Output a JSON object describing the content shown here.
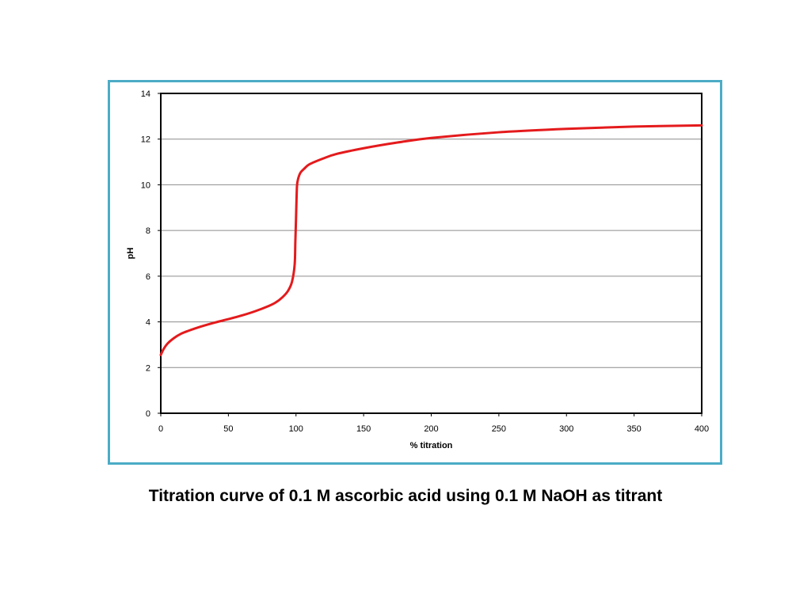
{
  "caption": "Titration curve of 0.1 M ascorbic acid using 0.1 M NaOH as titrant",
  "colors": {
    "frame": "#4bacc6",
    "curve": "#e41a1c",
    "grid": "#8c8c8c",
    "axis": "#000000"
  },
  "chart_data": {
    "type": "line",
    "title": "",
    "xlabel": "% titration",
    "ylabel": "pH",
    "xlim": [
      0,
      400
    ],
    "ylim": [
      0,
      14
    ],
    "x_ticks": [
      0,
      50,
      100,
      150,
      200,
      250,
      300,
      350,
      400
    ],
    "y_ticks": [
      0,
      2,
      4,
      6,
      8,
      10,
      12,
      14
    ],
    "grid": true,
    "legend": "none",
    "series": [
      {
        "x": [
          0,
          2,
          5,
          10,
          15,
          20,
          30,
          40,
          50,
          60,
          70,
          80,
          85,
          90,
          94,
          97,
          99,
          99.5,
          100,
          100.5,
          101,
          103,
          106,
          110,
          120,
          130,
          150,
          175,
          200,
          250,
          300,
          350,
          400
        ],
        "y": [
          2.55,
          2.8,
          3.05,
          3.3,
          3.48,
          3.6,
          3.8,
          3.97,
          4.12,
          4.28,
          4.47,
          4.7,
          4.85,
          5.08,
          5.35,
          5.75,
          6.5,
          7.5,
          8.5,
          9.6,
          10.1,
          10.5,
          10.7,
          10.9,
          11.15,
          11.35,
          11.6,
          11.85,
          12.05,
          12.3,
          12.45,
          12.55,
          12.6
        ]
      }
    ]
  }
}
